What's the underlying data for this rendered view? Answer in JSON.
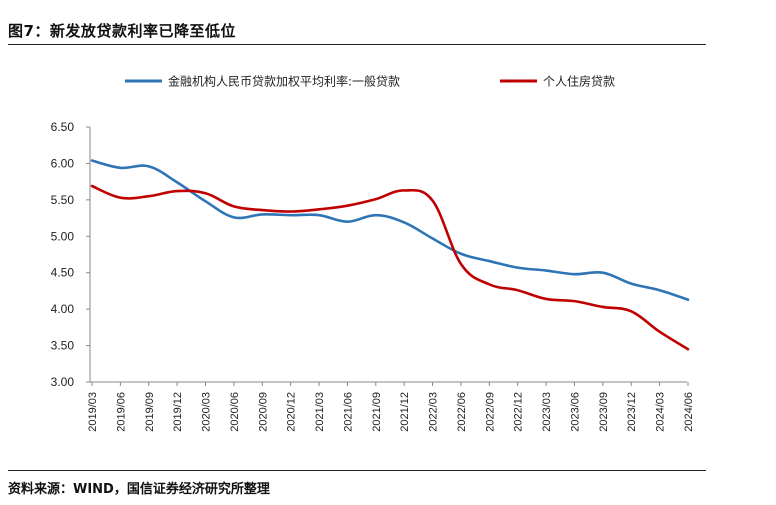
{
  "header": {
    "title": "图7：新发放贷款利率已降至低位"
  },
  "footer": {
    "source": "资料来源：WIND，国信证券经济研究所整理"
  },
  "colors": {
    "series_blue": "#2e75b6",
    "series_red": "#c00000",
    "axis": "#888888"
  },
  "chart_data": {
    "type": "line",
    "title": "新发放贷款利率已降至低位",
    "xlabel": "",
    "ylabel": "",
    "ylim": [
      3.0,
      6.5
    ],
    "yticks": [
      "6.50",
      "6.00",
      "5.50",
      "5.00",
      "4.50",
      "4.00",
      "3.50",
      "3.00"
    ],
    "legend_position": "top",
    "categories": [
      "2019/03",
      "2019/06",
      "2019/09",
      "2019/12",
      "2020/03",
      "2020/06",
      "2020/09",
      "2020/12",
      "2021/03",
      "2021/06",
      "2021/09",
      "2021/12",
      "2022/03",
      "2022/06",
      "2022/09",
      "2022/12",
      "2023/03",
      "2023/06",
      "2023/09",
      "2023/12",
      "2024/03",
      "2024/06"
    ],
    "series": [
      {
        "name": "金融机构人民币贷款加权平均利率:一般贷款",
        "values": [
          6.04,
          5.94,
          5.96,
          5.74,
          5.48,
          5.26,
          5.3,
          5.29,
          5.29,
          5.2,
          5.29,
          5.19,
          4.97,
          4.76,
          4.66,
          4.57,
          4.53,
          4.48,
          4.5,
          4.35,
          4.26,
          4.13
        ]
      },
      {
        "name": "个人住房贷款",
        "values": [
          5.69,
          5.53,
          5.55,
          5.62,
          5.59,
          5.41,
          5.36,
          5.34,
          5.37,
          5.42,
          5.51,
          5.63,
          5.49,
          4.62,
          4.34,
          4.26,
          4.14,
          4.11,
          4.03,
          3.97,
          3.69,
          3.45
        ]
      }
    ]
  }
}
